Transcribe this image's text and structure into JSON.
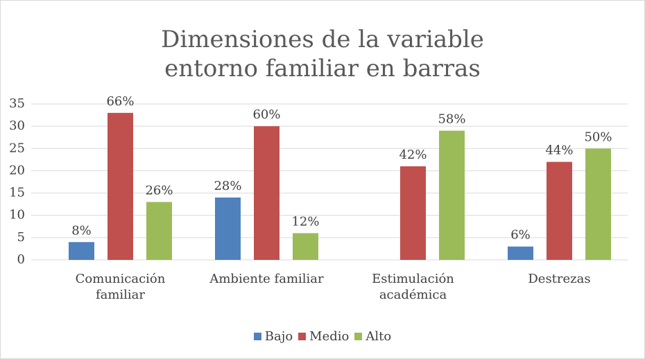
{
  "chart_data": {
    "type": "bar",
    "title": "Dimensiones de la variable entorno familiar en barras",
    "categories": [
      "Comunicación familiar",
      "Ambiente familiar",
      "Estimulación académica",
      "Destrezas"
    ],
    "series": [
      {
        "name": "Bajo",
        "color": "#4f81bd",
        "values": [
          4,
          14,
          null,
          3
        ],
        "value_labels": [
          "8%",
          "28%",
          null,
          "6%"
        ]
      },
      {
        "name": "Medio",
        "color": "#c0504d",
        "values": [
          33,
          30,
          21,
          22
        ],
        "value_labels": [
          "66%",
          "60%",
          "42%",
          "44%"
        ]
      },
      {
        "name": "Alto",
        "color": "#9bbb59",
        "values": [
          13,
          6,
          29,
          25
        ],
        "value_labels": [
          "26%",
          "12%",
          "58%",
          "50%"
        ]
      }
    ],
    "ylim": [
      0,
      35
    ],
    "yticks": [
      0,
      5,
      10,
      15,
      20,
      25,
      30,
      35
    ],
    "grid": true,
    "legend": "bottom"
  }
}
